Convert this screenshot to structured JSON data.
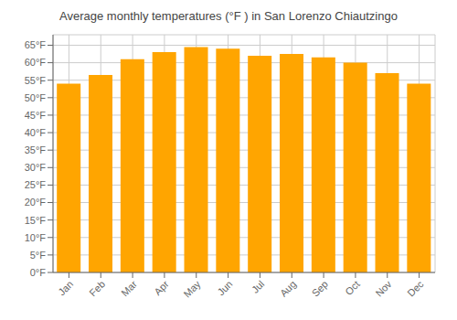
{
  "chart_data": {
    "type": "bar",
    "title": "Average monthly temperatures (°F ) in San Lorenzo Chiautzingo",
    "categories": [
      "Jan",
      "Feb",
      "Mar",
      "Apr",
      "May",
      "Jun",
      "Jul",
      "Aug",
      "Sep",
      "Oct",
      "Nov",
      "Dec"
    ],
    "values": [
      54.0,
      56.5,
      61.0,
      63.0,
      64.5,
      64.0,
      62.0,
      62.5,
      61.5,
      60.0,
      57.0,
      54.0
    ],
    "color": "#FFA500",
    "ylim": [
      0,
      68
    ],
    "yticks": [
      {
        "value": 0,
        "label": "0°F"
      },
      {
        "value": 5,
        "label": "5°F"
      },
      {
        "value": 10,
        "label": "10°F"
      },
      {
        "value": 15,
        "label": "15°F"
      },
      {
        "value": 20,
        "label": "20°F"
      },
      {
        "value": 25,
        "label": "25°F"
      },
      {
        "value": 30,
        "label": "30°F"
      },
      {
        "value": 35,
        "label": "35°F"
      },
      {
        "value": 40,
        "label": "40°F"
      },
      {
        "value": 45,
        "label": "45°F"
      },
      {
        "value": 50,
        "label": "50°F"
      },
      {
        "value": 55,
        "label": "55°F"
      },
      {
        "value": 60,
        "label": "60°F"
      },
      {
        "value": 65,
        "label": "65°F"
      }
    ],
    "grid": true
  }
}
